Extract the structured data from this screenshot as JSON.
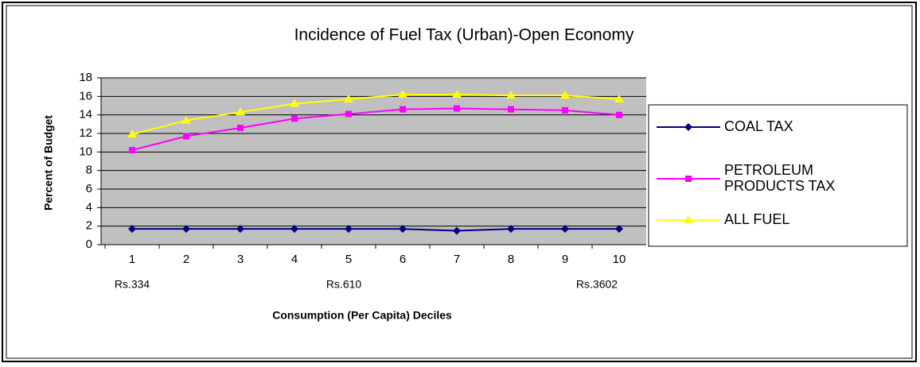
{
  "chart_data": {
    "type": "line",
    "title": "Incidence of Fuel Tax (Urban)-Open Economy",
    "x_label": "Consumption (Per Capita) Deciles",
    "y_label": "Percent of Budget",
    "categories": [
      "1",
      "2",
      "3",
      "4",
      "5",
      "6",
      "7",
      "8",
      "9",
      "10"
    ],
    "annotations": [
      "Rs.334",
      "Rs.610",
      "Rs.3602"
    ],
    "series": [
      {
        "name": "COAL TAX",
        "color": "#000080",
        "marker": "diamond",
        "values": [
          1.7,
          1.7,
          1.7,
          1.7,
          1.7,
          1.7,
          1.5,
          1.7,
          1.7,
          1.7
        ]
      },
      {
        "name": "PETROLEUM PRODUCTS TAX",
        "color": "#ff00ff",
        "marker": "square",
        "values": [
          10.2,
          11.7,
          12.6,
          13.6,
          14.1,
          14.6,
          14.7,
          14.6,
          14.5,
          14.0
        ]
      },
      {
        "name": "ALL FUEL",
        "color": "#ffff00",
        "marker": "triangle",
        "values": [
          11.9,
          13.4,
          14.3,
          15.2,
          15.7,
          16.2,
          16.2,
          16.1,
          16.1,
          15.7
        ]
      }
    ],
    "ylim": [
      0,
      18
    ],
    "yticks": [
      0,
      2,
      4,
      6,
      8,
      10,
      12,
      14,
      16,
      18
    ],
    "grid": true,
    "legend": "right"
  }
}
